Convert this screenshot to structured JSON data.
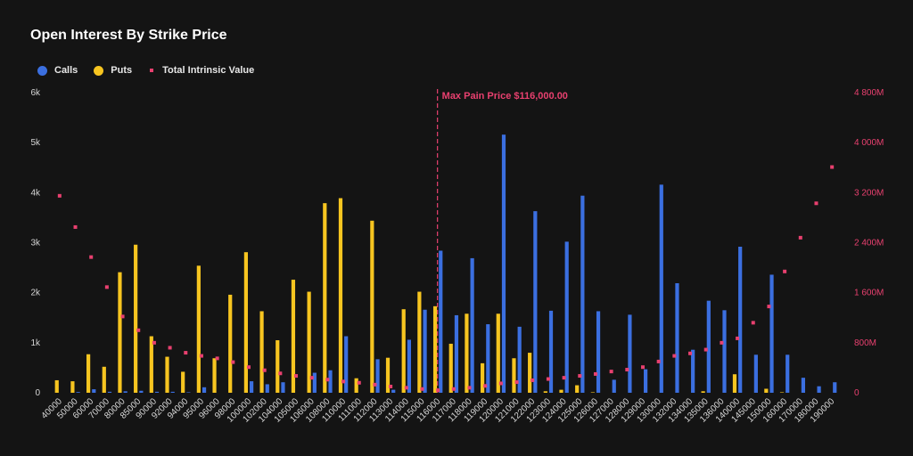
{
  "chart_data": {
    "type": "bar",
    "title": "Open Interest By Strike Price",
    "categories": [
      "40000",
      "50000",
      "60000",
      "70000",
      "80000",
      "85000",
      "90000",
      "92000",
      "94000",
      "95000",
      "96000",
      "98000",
      "100000",
      "102000",
      "104000",
      "105000",
      "106000",
      "108000",
      "110000",
      "111000",
      "112000",
      "113000",
      "114000",
      "115000",
      "116000",
      "117000",
      "118000",
      "119000",
      "120000",
      "121000",
      "122000",
      "123000",
      "124000",
      "125000",
      "126000",
      "127000",
      "128000",
      "129000",
      "130000",
      "132000",
      "134000",
      "135000",
      "136000",
      "140000",
      "145000",
      "150000",
      "160000",
      "170000",
      "180000",
      "190000"
    ],
    "series": [
      {
        "name": "Calls",
        "color": "#3b6fe0",
        "values": [
          0,
          15,
          70,
          20,
          30,
          40,
          20,
          20,
          10,
          110,
          0,
          0,
          230,
          170,
          210,
          0,
          400,
          450,
          1130,
          0,
          670,
          60,
          1060,
          1660,
          2840,
          1550,
          2690,
          1370,
          5160,
          1320,
          3630,
          1640,
          3020,
          3940,
          1630,
          260,
          1560,
          470,
          4160,
          2190,
          860,
          1840,
          1650,
          2920,
          760,
          2360,
          760,
          300,
          130,
          210
        ]
      },
      {
        "name": "Puts",
        "color": "#f7c520",
        "values": [
          250,
          230,
          770,
          520,
          2410,
          2960,
          1130,
          720,
          420,
          2540,
          690,
          1960,
          2810,
          1630,
          1050,
          2260,
          2020,
          3790,
          3890,
          290,
          3440,
          700,
          1670,
          2020,
          1730,
          980,
          1580,
          590,
          1580,
          690,
          800,
          30,
          60,
          150,
          10,
          0,
          0,
          0,
          0,
          0,
          0,
          30,
          0,
          370,
          0,
          80,
          10,
          0,
          0,
          0
        ]
      },
      {
        "name": "Total Intrinsic Value",
        "color": "#e8406f",
        "axis": "right",
        "values": [
          3150,
          2650,
          2170,
          1690,
          1220,
          1000,
          800,
          720,
          640,
          590,
          550,
          490,
          410,
          360,
          310,
          270,
          240,
          210,
          180,
          160,
          130,
          100,
          80,
          60,
          40,
          60,
          80,
          110,
          150,
          170,
          200,
          220,
          240,
          270,
          300,
          340,
          370,
          410,
          500,
          590,
          630,
          690,
          800,
          870,
          1120,
          1380,
          1940,
          2480,
          3030,
          3610
        ]
      }
    ],
    "legend": [
      "Calls",
      "Puts",
      "Total Intrinsic Value"
    ],
    "legend_position": "top-left",
    "y_left": {
      "ticks": [
        "0",
        "1k",
        "2k",
        "3k",
        "4k",
        "5k",
        "6k"
      ],
      "range": [
        0,
        6000
      ]
    },
    "y_right": {
      "ticks": [
        "0",
        "800M",
        "1 600M",
        "2 400M",
        "3 200M",
        "4 000M",
        "4 800M"
      ],
      "range": [
        0,
        4800
      ]
    },
    "annotation": {
      "label": "Max Pain Price $116,000.00",
      "at_category": "116000",
      "color": "#e8406f"
    }
  }
}
